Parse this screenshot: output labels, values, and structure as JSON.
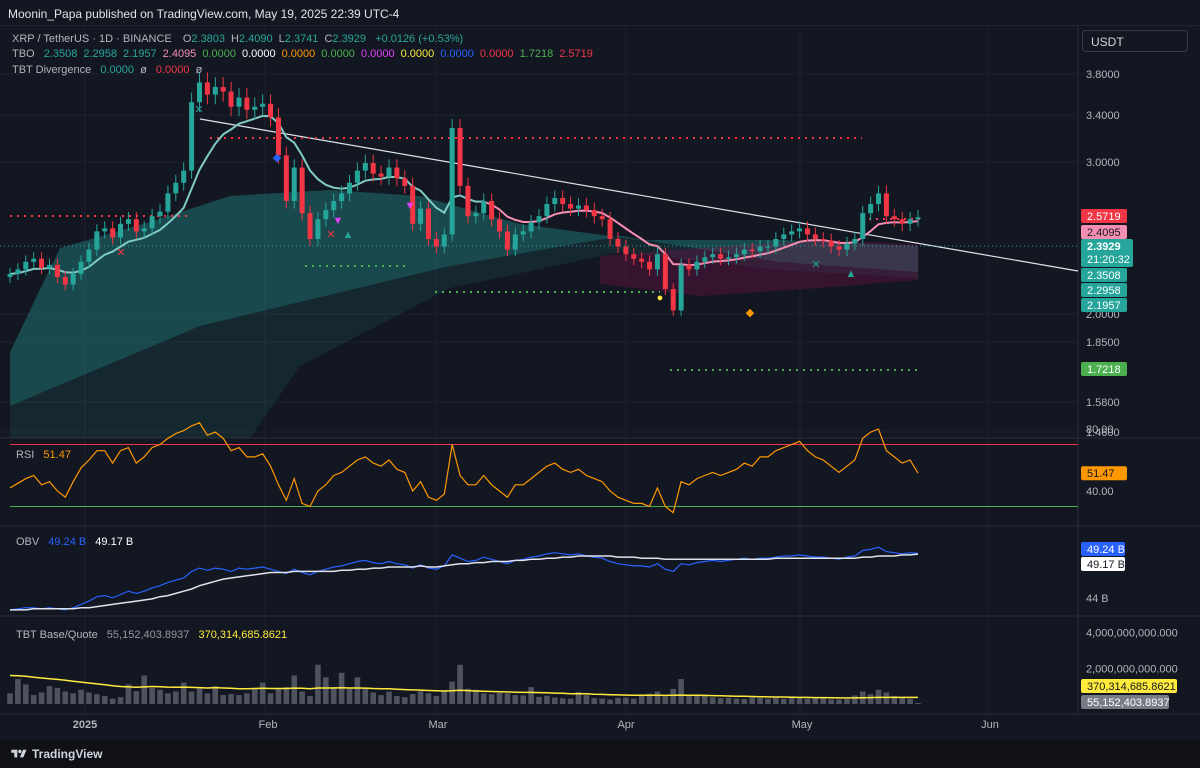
{
  "header": {
    "publisher_text": "Moonin_Papa published on TradingView.com, May 19, 2025 22:39 UTC-4"
  },
  "currency_button": "USDT",
  "legend": {
    "symbol": "XRP / TetherUS · 1D · BINANCE",
    "ohlc": [
      {
        "k": "O",
        "v": "2.3803"
      },
      {
        "k": "H",
        "v": "2.4090"
      },
      {
        "k": "L",
        "v": "2.3741"
      },
      {
        "k": "C",
        "v": "2.3929"
      }
    ],
    "change": "+0.0126 (+0.53%)",
    "tbo_label": "TBO",
    "tbo_values": [
      {
        "v": "2.3508",
        "c": "#26a69a"
      },
      {
        "v": "2.2958",
        "c": "#26a69a"
      },
      {
        "v": "2.1957",
        "c": "#26a69a"
      },
      {
        "v": "2.4095",
        "c": "#f48fb1"
      },
      {
        "v": "0.0000",
        "c": "#4caf50"
      },
      {
        "v": "0.0000",
        "c": "#ffffff"
      },
      {
        "v": "0.0000",
        "c": "#ff9800"
      },
      {
        "v": "0.0000",
        "c": "#4caf50"
      },
      {
        "v": "0.0000",
        "c": "#e040fb"
      },
      {
        "v": "0.0000",
        "c": "#ffeb3b"
      },
      {
        "v": "0.0000",
        "c": "#2962ff"
      },
      {
        "v": "0.0000",
        "c": "#f23645"
      },
      {
        "v": "1.7218",
        "c": "#4caf50"
      },
      {
        "v": "2.5719",
        "c": "#f23645"
      }
    ],
    "tbt_div_label": "TBT Divergence",
    "tbt_div_v1": "0.0000",
    "tbt_div_v2": "0.0000",
    "phi": "ø"
  },
  "chart_data": [
    {
      "type": "candlestick",
      "title": "XRP / TetherUS · 1D · BINANCE",
      "y_ticks": [
        "3.8000",
        "3.4000",
        "3.0000",
        "2.0000",
        "1.8500",
        "1.5800",
        "1.4600"
      ],
      "y_axis": "log",
      "x_ticks": [
        "2025",
        "Feb",
        "Mar",
        "Apr",
        "May",
        "Jun"
      ],
      "x_range": [
        "2024-12-26",
        "2025-06-17"
      ],
      "close_series": [
        2.02,
        2.05,
        2.1,
        2.12,
        2.06,
        2.08,
        2.0,
        1.95,
        2.02,
        2.1,
        2.18,
        2.3,
        2.32,
        2.26,
        2.35,
        2.38,
        2.3,
        2.32,
        2.4,
        2.43,
        2.55,
        2.62,
        2.7,
        3.15,
        3.28,
        3.2,
        3.25,
        3.22,
        3.12,
        3.18,
        3.1,
        3.12,
        3.14,
        3.05,
        2.8,
        2.5,
        2.72,
        2.42,
        2.25,
        2.38,
        2.44,
        2.5,
        2.55,
        2.62,
        2.7,
        2.75,
        2.68,
        2.66,
        2.72,
        2.65,
        2.6,
        2.35,
        2.45,
        2.25,
        2.2,
        2.28,
        2.98,
        2.6,
        2.4,
        2.42,
        2.5,
        2.38,
        2.3,
        2.18,
        2.28,
        2.3,
        2.36,
        2.4,
        2.48,
        2.52,
        2.48,
        2.45,
        2.47,
        2.44,
        2.4,
        2.38,
        2.25,
        2.2,
        2.15,
        2.12,
        2.1,
        2.05,
        2.15,
        1.92,
        1.78,
        2.08,
        2.05,
        2.1,
        2.13,
        2.15,
        2.12,
        2.13,
        2.15,
        2.18,
        2.17,
        2.2,
        2.2,
        2.25,
        2.28,
        2.3,
        2.32,
        2.28,
        2.25,
        2.24,
        2.2,
        2.18,
        2.22,
        2.25,
        2.42,
        2.48,
        2.55,
        2.4,
        2.38,
        2.35,
        2.38,
        2.3929
      ],
      "annotations": [
        "2.5719",
        "2.4095",
        "2.3929",
        "21:20:32",
        "2.3508",
        "2.2958",
        "2.1957",
        "1.7218"
      ]
    },
    {
      "type": "line",
      "title": "RSI",
      "last_value": "51.47",
      "y_ticks": [
        "80.00",
        "40.00"
      ],
      "bands": [
        70,
        30
      ],
      "series": [
        {
          "values": [
            42,
            45,
            48,
            50,
            44,
            46,
            40,
            36,
            46,
            55,
            60,
            66,
            66,
            58,
            66,
            68,
            58,
            62,
            68,
            70,
            74,
            77,
            79,
            82,
            84,
            76,
            78,
            74,
            66,
            68,
            62,
            62,
            64,
            56,
            44,
            34,
            48,
            32,
            30,
            40,
            44,
            50,
            52,
            56,
            60,
            62,
            58,
            56,
            60,
            54,
            52,
            40,
            46,
            36,
            34,
            38,
            70,
            50,
            44,
            44,
            50,
            44,
            40,
            36,
            44,
            44,
            48,
            52,
            56,
            58,
            54,
            52,
            54,
            50,
            48,
            46,
            40,
            36,
            34,
            32,
            32,
            30,
            42,
            30,
            26,
            46,
            44,
            48,
            50,
            52,
            50,
            52,
            54,
            58,
            56,
            62,
            62,
            66,
            68,
            70,
            72,
            66,
            62,
            60,
            56,
            52,
            56,
            60,
            74,
            78,
            80,
            66,
            62,
            58,
            60,
            51.47
          ]
        }
      ]
    },
    {
      "type": "line",
      "title": "OBV",
      "y_ticks": [
        "44 B"
      ],
      "series": [
        {
          "name": "49.24 B",
          "values": [
            44.1,
            44.2,
            44.3,
            44.3,
            44.2,
            44.3,
            44.2,
            44.1,
            44.3,
            44.6,
            44.9,
            45.3,
            45.4,
            45.2,
            45.5,
            45.8,
            45.6,
            45.8,
            46.1,
            46.3,
            46.6,
            46.8,
            47.0,
            47.6,
            47.9,
            47.7,
            47.9,
            47.8,
            47.6,
            47.9,
            47.8,
            47.9,
            48.0,
            47.8,
            47.6,
            47.4,
            47.8,
            47.5,
            47.3,
            47.6,
            47.8,
            48.0,
            48.1,
            48.3,
            48.5,
            48.6,
            48.4,
            48.3,
            48.5,
            48.3,
            48.2,
            47.9,
            48.2,
            47.9,
            47.8,
            48.1,
            49.1,
            48.8,
            48.5,
            48.6,
            48.9,
            48.7,
            48.5,
            48.3,
            48.6,
            48.7,
            48.9,
            49.0,
            49.2,
            49.3,
            49.2,
            49.1,
            49.2,
            49.0,
            48.9,
            48.8,
            48.5,
            48.3,
            48.2,
            48.1,
            48.1,
            48.0,
            48.3,
            47.8,
            47.6,
            48.3,
            48.2,
            48.4,
            48.5,
            48.6,
            48.5,
            48.6,
            48.7,
            48.8,
            48.7,
            48.8,
            48.8,
            48.9,
            49.0,
            49.0,
            49.1,
            49.0,
            48.9,
            48.9,
            48.8,
            48.7,
            48.9,
            49.0,
            49.5,
            49.6,
            49.8,
            49.4,
            49.3,
            49.2,
            49.3,
            49.24
          ]
        },
        {
          "name": "49.17 B",
          "values": [
            44.1,
            44.1,
            44.1,
            44.2,
            44.2,
            44.2,
            44.2,
            44.2,
            44.2,
            44.3,
            44.3,
            44.4,
            44.5,
            44.6,
            44.7,
            44.8,
            44.9,
            45.0,
            45.1,
            45.3,
            45.4,
            45.6,
            45.8,
            46.0,
            46.3,
            46.5,
            46.7,
            46.9,
            47.0,
            47.1,
            47.2,
            47.3,
            47.4,
            47.5,
            47.5,
            47.5,
            47.6,
            47.6,
            47.6,
            47.6,
            47.6,
            47.6,
            47.7,
            47.7,
            47.8,
            47.8,
            47.9,
            47.9,
            48.0,
            48.0,
            48.0,
            48.0,
            48.1,
            48.0,
            48.0,
            48.1,
            48.2,
            48.3,
            48.3,
            48.4,
            48.4,
            48.5,
            48.5,
            48.5,
            48.6,
            48.6,
            48.7,
            48.7,
            48.8,
            48.8,
            48.9,
            48.9,
            49.0,
            49.0,
            49.0,
            49.0,
            49.0,
            48.9,
            48.9,
            48.9,
            48.8,
            48.8,
            48.8,
            48.7,
            48.7,
            48.7,
            48.7,
            48.7,
            48.7,
            48.7,
            48.7,
            48.7,
            48.7,
            48.7,
            48.7,
            48.7,
            48.7,
            48.8,
            48.8,
            48.8,
            48.8,
            48.8,
            48.8,
            48.8,
            48.8,
            48.8,
            48.8,
            48.8,
            48.9,
            48.9,
            49.0,
            49.0,
            49.0,
            49.1,
            49.1,
            49.17
          ]
        }
      ]
    },
    {
      "type": "bar",
      "title": "TBT Base/Quote",
      "values_label_1": "55,152,403.8937",
      "values_label_2": "370,314,685.8621",
      "y_ticks": [
        "4,000,000,000.000",
        "2,000,000,000.000"
      ],
      "y_range": [
        0,
        4600000000
      ],
      "volume": [
        600000000,
        1400000000,
        1100000000,
        500000000,
        650000000,
        1000000000,
        900000000,
        700000000,
        600000000,
        800000000,
        650000000,
        550000000,
        450000000,
        300000000,
        380000000,
        1100000000,
        720000000,
        1600000000,
        900000000,
        800000000,
        600000000,
        700000000,
        1200000000,
        700000000,
        950000000,
        600000000,
        1000000000,
        500000000,
        560000000,
        500000000,
        600000000,
        850000000,
        1200000000,
        600000000,
        900000000,
        950000000,
        1600000000,
        700000000,
        450000000,
        2200000000,
        1500000000,
        950000000,
        1750000000,
        850000000,
        1500000000,
        900000000,
        650000000,
        500000000,
        700000000,
        450000000,
        380000000,
        560000000,
        720000000,
        600000000,
        450000000,
        700000000,
        1250000000,
        2200000000,
        850000000,
        800000000,
        600000000,
        550000000,
        620000000,
        600000000,
        500000000,
        480000000,
        950000000,
        400000000,
        460000000,
        360000000,
        320000000,
        300000000,
        680000000,
        500000000,
        330000000,
        300000000,
        250000000,
        340000000,
        360000000,
        300000000,
        520000000,
        580000000,
        700000000,
        430000000,
        850000000,
        1400000000,
        460000000,
        540000000,
        480000000,
        380000000,
        330000000,
        350000000,
        300000000,
        280000000,
        370000000,
        340000000,
        300000000,
        350000000,
        290000000,
        430000000,
        360000000,
        300000000,
        360000000,
        330000000,
        260000000,
        250000000,
        290000000,
        480000000,
        700000000,
        550000000,
        800000000,
        650000000,
        450000000,
        380000000,
        300000000,
        55152403.8937
      ],
      "line": [
        1600000000,
        1580000000,
        1560000000,
        1500000000,
        1460000000,
        1420000000,
        1380000000,
        1330000000,
        1280000000,
        1230000000,
        1180000000,
        1130000000,
        1080000000,
        1020000000,
        980000000,
        960000000,
        940000000,
        960000000,
        980000000,
        970000000,
        950000000,
        940000000,
        950000000,
        930000000,
        920000000,
        900000000,
        920000000,
        900000000,
        880000000,
        860000000,
        860000000,
        870000000,
        880000000,
        870000000,
        870000000,
        870000000,
        890000000,
        880000000,
        860000000,
        900000000,
        900000000,
        900000000,
        910000000,
        900000000,
        900000000,
        890000000,
        870000000,
        860000000,
        850000000,
        830000000,
        810000000,
        790000000,
        780000000,
        760000000,
        740000000,
        730000000,
        740000000,
        770000000,
        750000000,
        730000000,
        710000000,
        700000000,
        690000000,
        680000000,
        660000000,
        650000000,
        650000000,
        640000000,
        630000000,
        610000000,
        600000000,
        580000000,
        580000000,
        570000000,
        550000000,
        540000000,
        520000000,
        510000000,
        500000000,
        490000000,
        490000000,
        490000000,
        490000000,
        480000000,
        490000000,
        500000000,
        490000000,
        490000000,
        480000000,
        470000000,
        460000000,
        450000000,
        440000000,
        430000000,
        420000000,
        410000000,
        400000000,
        390000000,
        390000000,
        380000000,
        370000000,
        370000000,
        360000000,
        360000000,
        350000000,
        340000000,
        340000000,
        340000000,
        350000000,
        360000000,
        370000000,
        370000000,
        370000000,
        370000000,
        370000000,
        370314685.8621
      ]
    }
  ],
  "footer": {
    "brand": "TradingView"
  }
}
